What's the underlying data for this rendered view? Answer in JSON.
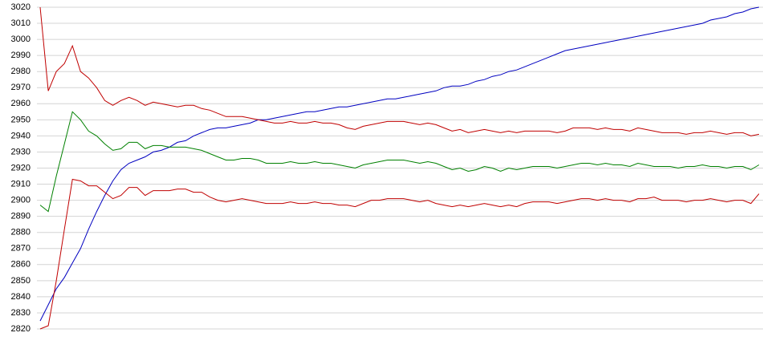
{
  "chart_data": {
    "type": "line",
    "ylim": [
      2820,
      3020
    ],
    "yticks": [
      2820,
      2830,
      2840,
      2850,
      2860,
      2870,
      2880,
      2890,
      2900,
      2910,
      2920,
      2930,
      2940,
      2950,
      2960,
      2970,
      2980,
      2990,
      3000,
      3010,
      3020
    ],
    "grid": true,
    "series": [
      {
        "color": "#0000c0",
        "values": [
          2825,
          2835,
          2845,
          2852,
          2861,
          2870,
          2882,
          2893,
          2903,
          2912,
          2919,
          2923,
          2925,
          2927,
          2930,
          2931,
          2933,
          2936,
          2937,
          2940,
          2942,
          2944,
          2945,
          2945,
          2946,
          2947,
          2948,
          2950,
          2950,
          2951,
          2952,
          2953,
          2954,
          2955,
          2955,
          2956,
          2957,
          2958,
          2958,
          2959,
          2960,
          2961,
          2962,
          2963,
          2963,
          2964,
          2965,
          2966,
          2967,
          2968,
          2970,
          2971,
          2971,
          2972,
          2974,
          2975,
          2977,
          2978,
          2980,
          2981,
          2983,
          2985,
          2987,
          2989,
          2991,
          2993,
          2994,
          2995,
          2996,
          2997,
          2998,
          2999,
          3000,
          3001,
          3002,
          3003,
          3004,
          3005,
          3006,
          3007,
          3008,
          3009,
          3010,
          3012,
          3013,
          3014,
          3016,
          3017,
          3019,
          3020
        ]
      },
      {
        "color": "#c00000",
        "values": [
          3020,
          2968,
          2980,
          2985,
          2996,
          2980,
          2976,
          2970,
          2962,
          2959,
          2962,
          2964,
          2962,
          2959,
          2961,
          2960,
          2959,
          2958,
          2959,
          2959,
          2957,
          2956,
          2954,
          2952,
          2952,
          2952,
          2951,
          2950,
          2949,
          2948,
          2948,
          2949,
          2948,
          2948,
          2949,
          2948,
          2948,
          2947,
          2945,
          2944,
          2946,
          2947,
          2948,
          2949,
          2949,
          2949,
          2948,
          2947,
          2948,
          2947,
          2945,
          2943,
          2944,
          2942,
          2943,
          2944,
          2943,
          2942,
          2943,
          2942,
          2943,
          2943,
          2943,
          2943,
          2942,
          2943,
          2945,
          2945,
          2945,
          2944,
          2945,
          2944,
          2944,
          2943,
          2945,
          2944,
          2943,
          2942,
          2942,
          2942,
          2941,
          2942,
          2942,
          2943,
          2942,
          2941,
          2942,
          2942,
          2940,
          2941
        ]
      },
      {
        "color": "#008000",
        "values": [
          2897,
          2893,
          2915,
          2935,
          2955,
          2950,
          2943,
          2940,
          2935,
          2931,
          2932,
          2936,
          2936,
          2932,
          2934,
          2934,
          2933,
          2933,
          2933,
          2932,
          2931,
          2929,
          2927,
          2925,
          2925,
          2926,
          2926,
          2925,
          2923,
          2923,
          2923,
          2924,
          2923,
          2923,
          2924,
          2923,
          2923,
          2922,
          2921,
          2920,
          2922,
          2923,
          2924,
          2925,
          2925,
          2925,
          2924,
          2923,
          2924,
          2923,
          2921,
          2919,
          2920,
          2918,
          2919,
          2921,
          2920,
          2918,
          2920,
          2919,
          2920,
          2921,
          2921,
          2921,
          2920,
          2921,
          2922,
          2923,
          2923,
          2922,
          2923,
          2922,
          2922,
          2921,
          2923,
          2922,
          2921,
          2921,
          2921,
          2920,
          2921,
          2921,
          2922,
          2921,
          2921,
          2920,
          2921,
          2921,
          2919,
          2922
        ]
      },
      {
        "color": "#c00000",
        "values": [
          2820,
          2822,
          2850,
          2882,
          2913,
          2912,
          2909,
          2909,
          2905,
          2901,
          2903,
          2908,
          2908,
          2903,
          2906,
          2906,
          2906,
          2907,
          2907,
          2905,
          2905,
          2902,
          2900,
          2899,
          2900,
          2901,
          2900,
          2899,
          2898,
          2898,
          2898,
          2899,
          2898,
          2898,
          2899,
          2898,
          2898,
          2897,
          2897,
          2896,
          2898,
          2900,
          2900,
          2901,
          2901,
          2901,
          2900,
          2899,
          2900,
          2898,
          2897,
          2896,
          2897,
          2896,
          2897,
          2898,
          2897,
          2896,
          2897,
          2896,
          2898,
          2899,
          2899,
          2899,
          2898,
          2899,
          2900,
          2901,
          2901,
          2900,
          2901,
          2900,
          2900,
          2899,
          2901,
          2901,
          2902,
          2900,
          2900,
          2900,
          2899,
          2900,
          2900,
          2901,
          2900,
          2899,
          2900,
          2900,
          2898,
          2904
        ]
      }
    ]
  }
}
